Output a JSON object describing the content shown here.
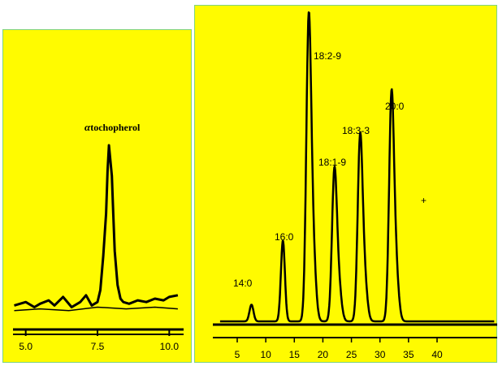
{
  "chart_data": [
    {
      "type": "line",
      "xlim": [
        4.5,
        10.5
      ],
      "ylim": [
        0,
        100
      ],
      "x_ticks": [
        "5.0",
        "7.5",
        "10.0"
      ],
      "annotation": {
        "text": "tochopherol",
        "prefix": "α"
      },
      "series": [
        {
          "x": [
            4.6,
            5.0,
            5.3,
            5.5,
            5.8,
            6.0,
            6.3,
            6.6,
            6.9,
            7.1,
            7.3,
            7.5,
            7.6,
            7.7,
            7.8,
            7.85,
            7.9,
            8.0,
            8.05,
            8.1,
            8.2,
            8.3,
            8.4,
            8.6,
            8.9,
            9.2,
            9.5,
            9.8,
            10.0,
            10.3
          ],
          "y": [
            6,
            8,
            5,
            7,
            9,
            6,
            11,
            5,
            8,
            12,
            6,
            8,
            15,
            35,
            60,
            85,
            100,
            82,
            60,
            38,
            18,
            10,
            8,
            7,
            9,
            8,
            10,
            9,
            11,
            12
          ]
        },
        {
          "x": [
            4.6,
            5.5,
            6.5,
            7.5,
            8.5,
            9.5,
            10.3
          ],
          "y": [
            3,
            4,
            3,
            5,
            4,
            5,
            4
          ]
        }
      ]
    },
    {
      "type": "line",
      "xlim": [
        0,
        50
      ],
      "ylim": [
        0,
        100
      ],
      "x_ticks": [
        "5",
        "10",
        "15",
        "20",
        "25",
        "30",
        "35",
        "40"
      ],
      "peaks": [
        {
          "label": "14:0",
          "x": 7.5,
          "height": 6
        },
        {
          "label": "16:0",
          "x": 13.0,
          "height": 29
        },
        {
          "label": "18:2-9",
          "x": 17.5,
          "height": 100
        },
        {
          "label": "18:1-9",
          "x": 22.0,
          "height": 50
        },
        {
          "label": "18:3-3",
          "x": 26.5,
          "height": 61
        },
        {
          "label": "20:0",
          "x": 32.0,
          "height": 75
        }
      ]
    }
  ]
}
